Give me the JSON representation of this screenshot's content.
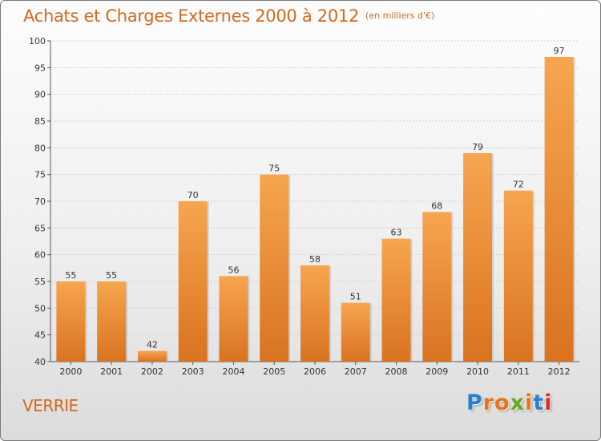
{
  "title": "Achats et Charges Externes 2000 à 2012",
  "unit": "(en milliers d'€)",
  "commune": "VERRIE",
  "brand": {
    "text": "Proxiti",
    "letter_colors": [
      "#2a7fd4",
      "#e8731a",
      "#e8731a",
      "#6aaa1e",
      "#e8731a",
      "#2a7fd4",
      "#d4302a"
    ]
  },
  "colors": {
    "bar_top": "#f7a54f",
    "bar_bottom": "#d97320",
    "text_orange": "#d2691e"
  },
  "chart_data": {
    "type": "bar",
    "categories": [
      "2000",
      "2001",
      "2002",
      "2003",
      "2004",
      "2005",
      "2006",
      "2007",
      "2008",
      "2009",
      "2010",
      "2011",
      "2012"
    ],
    "values": [
      55,
      55,
      42,
      70,
      56,
      75,
      58,
      51,
      63,
      68,
      79,
      72,
      97
    ],
    "value_labels": [
      "55",
      "55",
      "42",
      "70",
      "56",
      "75",
      "58",
      "51",
      "63",
      "68",
      "79",
      "72",
      "97"
    ],
    "ylim": [
      40,
      100
    ],
    "yticks": [
      40,
      45,
      50,
      55,
      60,
      65,
      70,
      75,
      80,
      85,
      90,
      95,
      100
    ],
    "ytick_labels": [
      "40",
      "45",
      "50",
      "55",
      "60",
      "65",
      "70",
      "75",
      "80",
      "85",
      "90",
      "95",
      "100"
    ],
    "grid": true,
    "legend": "none"
  }
}
